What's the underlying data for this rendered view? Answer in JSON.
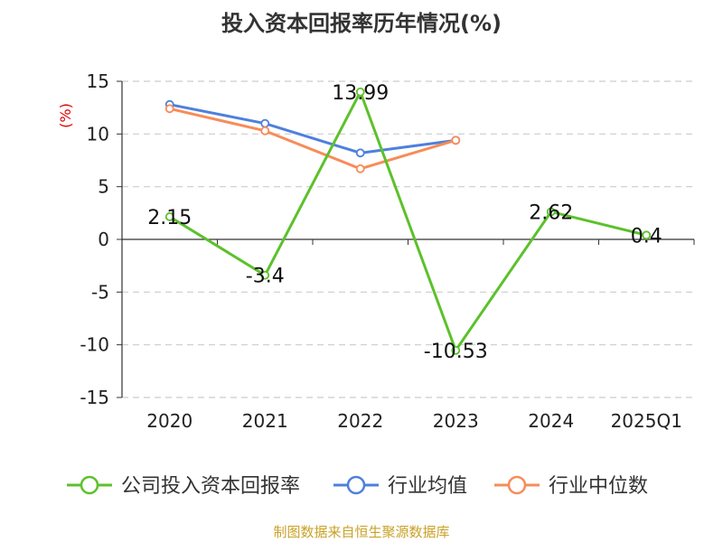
{
  "title": "投入资本回报率历年情况(%)",
  "source": "制图数据来自恒生聚源数据库",
  "colors": {
    "company": "#5cc12b",
    "industry_avg": "#4e80dc",
    "industry_median": "#f78c59",
    "ylabel": "#e00000",
    "source": "#c9a227"
  },
  "chart_data": {
    "type": "line",
    "title": "投入资本回报率历年情况(%)",
    "xlabel": "",
    "ylabel": "(%)",
    "ylim": [
      -15,
      15
    ],
    "yticks": [
      15,
      10,
      5,
      0,
      -5,
      -10,
      -15
    ],
    "categories": [
      "2020",
      "2021",
      "2022",
      "2023",
      "2024",
      "2025Q1"
    ],
    "grid": true,
    "legend": "bottom",
    "series": [
      {
        "name": "公司投入资本回报率",
        "values": [
          2.15,
          -3.4,
          13.99,
          -10.53,
          2.62,
          0.4
        ],
        "labels": [
          "2.15",
          "-3.4",
          "13.99",
          "-10.53",
          "2.62",
          "0.4"
        ],
        "color": "#5cc12b"
      },
      {
        "name": "行业均值",
        "values": [
          12.8,
          11.0,
          8.2,
          9.4,
          null,
          null
        ],
        "color": "#4e80dc"
      },
      {
        "name": "行业中位数",
        "values": [
          12.4,
          10.3,
          6.7,
          9.4,
          null,
          null
        ],
        "color": "#f78c59"
      }
    ]
  }
}
